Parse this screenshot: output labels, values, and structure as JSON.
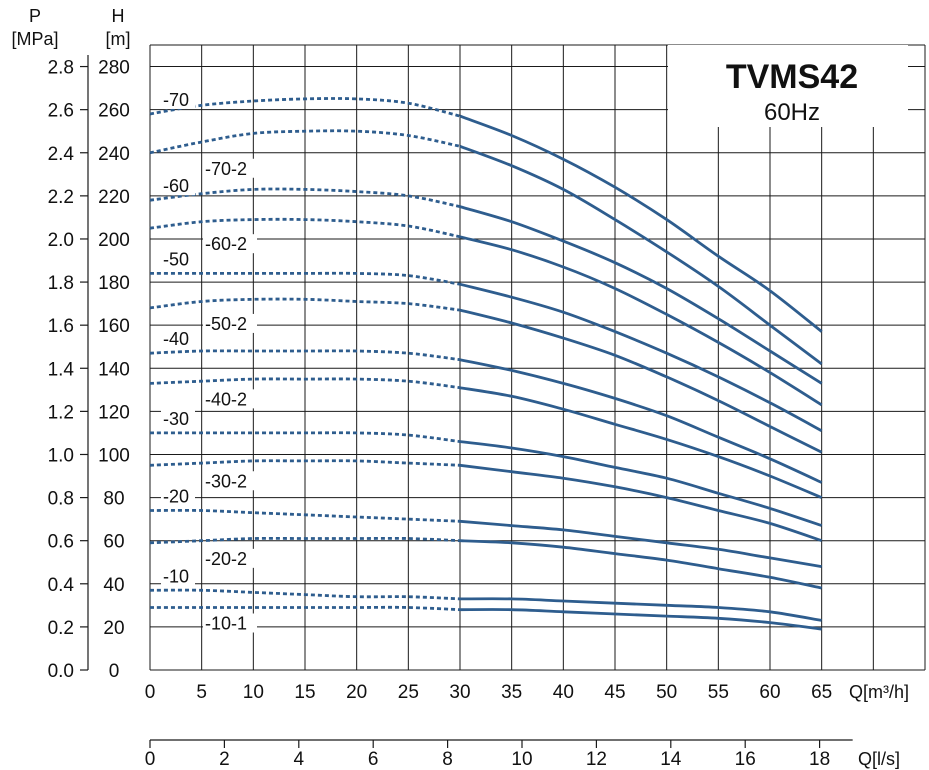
{
  "chart_data": {
    "type": "line",
    "title": "TVMS42",
    "subtitle": "60Hz",
    "x_label_m3h": "Q[m³/h]",
    "x_label_ls": "Q[l/s]",
    "y_label_m": "H",
    "y_unit_m": "[m]",
    "y_label_mpa": "P",
    "y_unit_mpa": "[MPa]",
    "xlim": [
      0,
      75
    ],
    "ylim_m": [
      0,
      290
    ],
    "ylim_mpa": [
      0,
      2.9
    ],
    "x_ticks": [
      "0",
      "5",
      "10",
      "15",
      "20",
      "25",
      "30",
      "35",
      "40",
      "45",
      "50",
      "55",
      "60",
      "65"
    ],
    "x_ticks_ls": [
      "0",
      "2",
      "4",
      "6",
      "8",
      "10",
      "12",
      "14",
      "16",
      "18"
    ],
    "y_ticks_m": [
      "0",
      "20",
      "40",
      "60",
      "80",
      "100",
      "120",
      "140",
      "160",
      "180",
      "200",
      "220",
      "240",
      "260",
      "280"
    ],
    "y_ticks_mpa": [
      "0.0",
      "0.2",
      "0.4",
      "0.6",
      "0.8",
      "1.0",
      "1.2",
      "1.4",
      "1.6",
      "1.8",
      "2.0",
      "2.2",
      "2.4",
      "2.6",
      "2.8"
    ],
    "grid": true,
    "line_color": "#2e5d8e",
    "dotted_segment_below_flow": 30,
    "series": [
      {
        "name": "-70",
        "x": [
          0,
          5,
          10,
          15,
          20,
          25,
          30,
          35,
          40,
          45,
          50,
          55,
          60,
          65
        ],
        "y": [
          258,
          262,
          264,
          265,
          265,
          263,
          257,
          248,
          237,
          224,
          209,
          192,
          176,
          157
        ]
      },
      {
        "name": "-70-2",
        "x": [
          0,
          5,
          10,
          15,
          20,
          25,
          30,
          35,
          40,
          45,
          50,
          55,
          60,
          65
        ],
        "y": [
          240,
          245,
          249,
          250,
          250,
          248,
          243,
          234,
          223,
          209,
          194,
          178,
          160,
          142
        ]
      },
      {
        "name": "-60",
        "x": [
          0,
          5,
          10,
          15,
          20,
          25,
          30,
          35,
          40,
          45,
          50,
          55,
          60,
          65
        ],
        "y": [
          218,
          221,
          223,
          223,
          222,
          220,
          215,
          208,
          199,
          189,
          177,
          163,
          148,
          133
        ]
      },
      {
        "name": "-60-2",
        "x": [
          0,
          5,
          10,
          15,
          20,
          25,
          30,
          35,
          40,
          45,
          50,
          55,
          60,
          65
        ],
        "y": [
          205,
          208,
          209,
          209,
          208,
          206,
          201,
          195,
          187,
          177,
          165,
          152,
          138,
          123
        ]
      },
      {
        "name": "-50",
        "x": [
          0,
          5,
          10,
          15,
          20,
          25,
          30,
          35,
          40,
          45,
          50,
          55,
          60,
          65
        ],
        "y": [
          184,
          184,
          184,
          184,
          184,
          183,
          179,
          173,
          166,
          157,
          147,
          136,
          124,
          111
        ]
      },
      {
        "name": "-50-2",
        "x": [
          0,
          5,
          10,
          15,
          20,
          25,
          30,
          35,
          40,
          45,
          50,
          55,
          60,
          65
        ],
        "y": [
          168,
          171,
          172,
          172,
          171,
          170,
          167,
          161,
          154,
          146,
          136,
          125,
          113,
          101
        ]
      },
      {
        "name": "-40",
        "x": [
          0,
          5,
          10,
          15,
          20,
          25,
          30,
          35,
          40,
          45,
          50,
          55,
          60,
          65
        ],
        "y": [
          147,
          148,
          148,
          148,
          148,
          147,
          144,
          139,
          133,
          126,
          118,
          108,
          98,
          87
        ]
      },
      {
        "name": "-40-2",
        "x": [
          0,
          5,
          10,
          15,
          20,
          25,
          30,
          35,
          40,
          45,
          50,
          55,
          60,
          65
        ],
        "y": [
          133,
          134,
          135,
          135,
          135,
          134,
          131,
          127,
          121,
          114,
          107,
          99,
          90,
          80
        ]
      },
      {
        "name": "-30",
        "x": [
          0,
          5,
          10,
          15,
          20,
          25,
          30,
          35,
          40,
          45,
          50,
          55,
          60,
          65
        ],
        "y": [
          110,
          110,
          110,
          110,
          110,
          109,
          106,
          103,
          99,
          94,
          89,
          82,
          75,
          67
        ]
      },
      {
        "name": "-30-2",
        "x": [
          0,
          5,
          10,
          15,
          20,
          25,
          30,
          35,
          40,
          45,
          50,
          55,
          60,
          65
        ],
        "y": [
          95,
          96,
          97,
          97,
          97,
          96,
          95,
          92,
          89,
          85,
          80,
          74,
          68,
          60
        ]
      },
      {
        "name": "-20",
        "x": [
          0,
          5,
          10,
          15,
          20,
          25,
          30,
          35,
          40,
          45,
          50,
          55,
          60,
          65
        ],
        "y": [
          74,
          74,
          73,
          72,
          71,
          70,
          69,
          67,
          65,
          62,
          59,
          56,
          52,
          48
        ]
      },
      {
        "name": "-20-2",
        "x": [
          0,
          5,
          10,
          15,
          20,
          25,
          30,
          35,
          40,
          45,
          50,
          55,
          60,
          65
        ],
        "y": [
          59,
          60,
          61,
          61,
          61,
          61,
          60,
          59,
          57,
          54,
          51,
          47,
          43,
          38
        ]
      },
      {
        "name": "-10",
        "x": [
          0,
          5,
          10,
          15,
          20,
          25,
          30,
          35,
          40,
          45,
          50,
          55,
          60,
          65
        ],
        "y": [
          37,
          37,
          36,
          35,
          34,
          34,
          33,
          33,
          32,
          31,
          30,
          29,
          27,
          23
        ]
      },
      {
        "name": "-10-1",
        "x": [
          0,
          5,
          10,
          15,
          20,
          25,
          30,
          35,
          40,
          45,
          50,
          55,
          60,
          65
        ],
        "y": [
          29,
          29,
          29,
          29,
          29,
          29,
          28,
          28,
          27,
          26,
          25,
          24,
          22,
          19
        ]
      }
    ]
  }
}
